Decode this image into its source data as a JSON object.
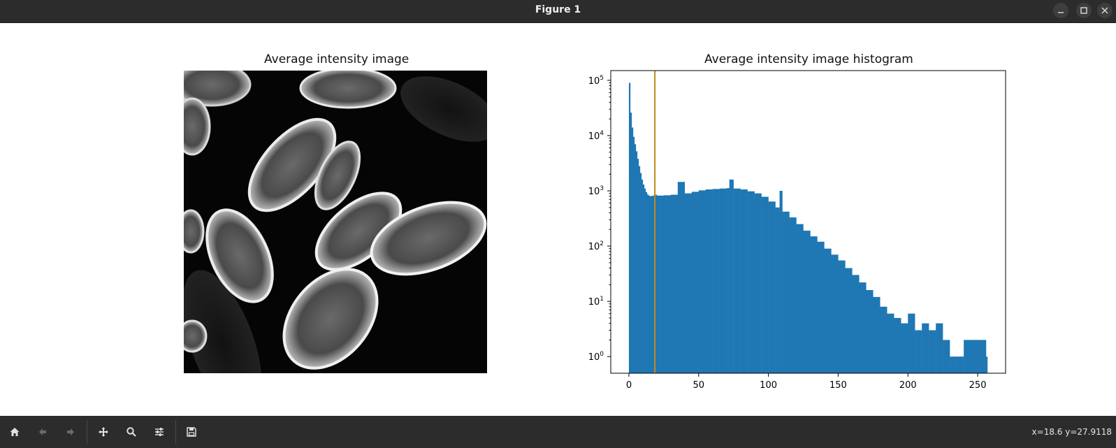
{
  "window": {
    "title": "Figure 1"
  },
  "left_panel": {
    "title": "Average intensity image"
  },
  "right_panel": {
    "title": "Average intensity image histogram"
  },
  "chart_data": {
    "type": "bar",
    "title": "Average intensity image histogram",
    "xlabel": "",
    "ylabel": "",
    "yscale": "log",
    "xlim": [
      -13,
      270
    ],
    "ylim": [
      0.5,
      150000
    ],
    "x_ticks": [
      "0",
      "50",
      "100",
      "150",
      "200",
      "250"
    ],
    "y_ticks": [
      "10^0",
      "10^1",
      "10^2",
      "10^3",
      "10^4",
      "10^5"
    ],
    "bar_color": "#1f77b4",
    "threshold_line": {
      "x": 18.6,
      "color": "#c08b1a"
    },
    "bins": [
      [
        0,
        90000
      ],
      [
        1,
        26000
      ],
      [
        2,
        14000
      ],
      [
        3,
        9500
      ],
      [
        4,
        7000
      ],
      [
        5,
        5200
      ],
      [
        6,
        3800
      ],
      [
        7,
        2800
      ],
      [
        8,
        2100
      ],
      [
        9,
        1600
      ],
      [
        10,
        1300
      ],
      [
        11,
        1100
      ],
      [
        12,
        950
      ],
      [
        13,
        860
      ],
      [
        14,
        820
      ],
      [
        15,
        800
      ],
      [
        16,
        810
      ],
      [
        17,
        820
      ],
      [
        18,
        830
      ],
      [
        19,
        850
      ],
      [
        20,
        820
      ],
      [
        25,
        830
      ],
      [
        30,
        850
      ],
      [
        35,
        1450
      ],
      [
        40,
        900
      ],
      [
        45,
        960
      ],
      [
        50,
        1020
      ],
      [
        55,
        1060
      ],
      [
        60,
        1080
      ],
      [
        65,
        1100
      ],
      [
        70,
        1120
      ],
      [
        72,
        1600
      ],
      [
        75,
        1100
      ],
      [
        80,
        1060
      ],
      [
        85,
        980
      ],
      [
        90,
        900
      ],
      [
        95,
        780
      ],
      [
        100,
        640
      ],
      [
        105,
        500
      ],
      [
        108,
        1000
      ],
      [
        110,
        420
      ],
      [
        115,
        330
      ],
      [
        120,
        250
      ],
      [
        125,
        190
      ],
      [
        130,
        150
      ],
      [
        135,
        120
      ],
      [
        140,
        90
      ],
      [
        145,
        70
      ],
      [
        150,
        55
      ],
      [
        155,
        40
      ],
      [
        160,
        30
      ],
      [
        165,
        22
      ],
      [
        170,
        16
      ],
      [
        175,
        12
      ],
      [
        180,
        8
      ],
      [
        185,
        6
      ],
      [
        190,
        5
      ],
      [
        195,
        4
      ],
      [
        200,
        6
      ],
      [
        205,
        3
      ],
      [
        210,
        4
      ],
      [
        215,
        3
      ],
      [
        220,
        4
      ],
      [
        225,
        2
      ],
      [
        230,
        1
      ],
      [
        235,
        1
      ],
      [
        240,
        2
      ],
      [
        256,
        1
      ]
    ]
  },
  "toolbar": {
    "buttons": [
      "home-icon",
      "back-icon",
      "forward-icon",
      "pan-icon",
      "zoom-icon",
      "configure-icon",
      "save-icon"
    ]
  },
  "status": {
    "coords": "x=18.6 y=27.9118"
  }
}
